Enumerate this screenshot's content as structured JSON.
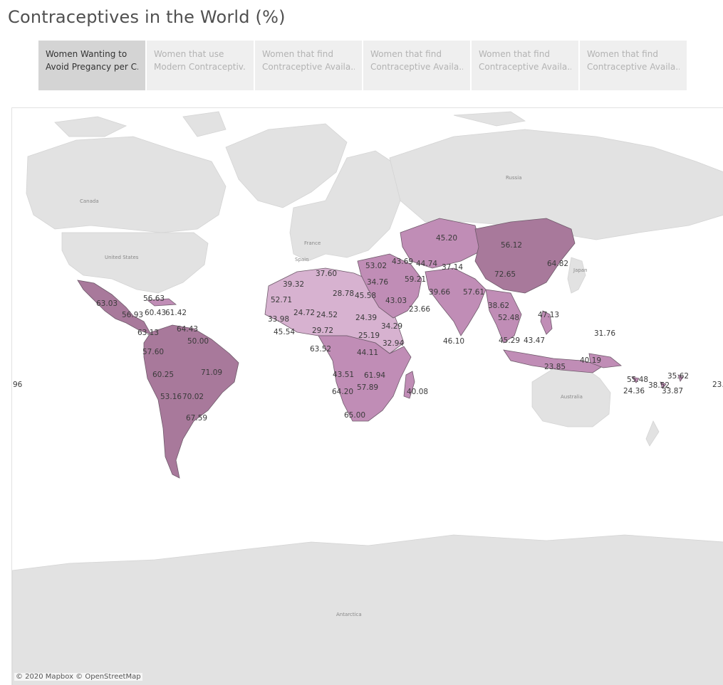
{
  "title": "Contraceptives in the World (%)",
  "tabs": [
    {
      "line1": "Women Wanting to",
      "line2": "Avoid Pregancy per C..",
      "active": true
    },
    {
      "line1": "Women that use",
      "line2": "Modern Contraceptiv..",
      "active": false
    },
    {
      "line1": "Women that find",
      "line2": "Contraceptive Availa..",
      "active": false
    },
    {
      "line1": "Women that find",
      "line2": "Contraceptive Availa..",
      "active": false
    },
    {
      "line1": "Women that find",
      "line2": "Contraceptive Availa..",
      "active": false
    },
    {
      "line1": "Women that find",
      "line2": "Contraceptive Availa..",
      "active": false
    }
  ],
  "map": {
    "place_labels": [
      "Canada",
      "United States",
      "Russia",
      "France",
      "Spain",
      "Japan",
      "Australia",
      "Antarctica"
    ],
    "colors": {
      "land": "#e2e2e2",
      "water": "#ffffff",
      "low": "#d7b2d0",
      "mid": "#c08db6",
      "high": "#a8799b",
      "border": "#6e5a6a"
    },
    "value_labels": [
      "63.03",
      "56.63",
      "60.43",
      "61.42",
      "56.93",
      "63.13",
      "64.43",
      "50.00",
      "57.60",
      "60.25",
      "71.09",
      "53.16",
      "70.02",
      "67.59",
      "37.60",
      "39.32",
      "52.71",
      "33.98",
      "24.72",
      "24.52",
      "45.54",
      "29.72",
      "28.78",
      "45.58",
      "34.76",
      "53.02",
      "43.69",
      "44.74",
      "37.14",
      "45.20",
      "56.12",
      "64.82",
      "72.65",
      "59.21",
      "43.03",
      "39.66",
      "57.61",
      "24.39",
      "25.19",
      "34.29",
      "32.94",
      "23.66",
      "44.11",
      "43.51",
      "61.94",
      "57.89",
      "64.20",
      "65.00",
      "40.08",
      "46.10",
      "38.62",
      "52.48",
      "47.13",
      "45.29",
      "43.47",
      "23.85",
      "40.19",
      "31.76",
      "55.48",
      "35.62",
      "38.52",
      "24.36",
      "33.87",
      "23.",
      "96",
      "63.52"
    ],
    "attribution": "© 2020 Mapbox © OpenStreetMap"
  }
}
